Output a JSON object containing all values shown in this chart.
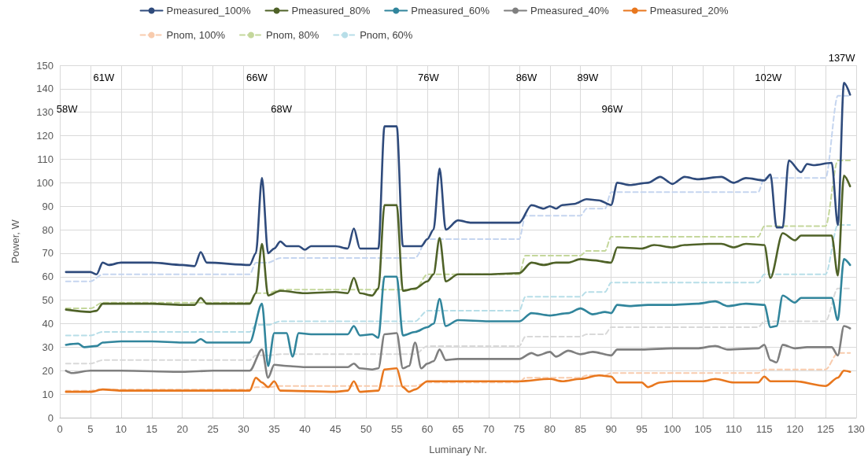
{
  "chart_data": {
    "type": "line",
    "xlabel": "Luminary Nr.",
    "ylabel": "Power, W",
    "xlim": [
      0,
      130
    ],
    "xticks": [
      0,
      5,
      10,
      15,
      20,
      25,
      30,
      35,
      40,
      45,
      50,
      55,
      60,
      65,
      70,
      75,
      80,
      85,
      90,
      95,
      100,
      105,
      110,
      115,
      120,
      125,
      130
    ],
    "ylim": [
      0,
      150
    ],
    "yticks": [
      0,
      10,
      20,
      30,
      40,
      50,
      60,
      70,
      80,
      90,
      100,
      110,
      120,
      130,
      140,
      150
    ],
    "grid": true,
    "legend": "top",
    "marker": "none",
    "annotations": [
      "58W",
      "61W",
      "66W",
      "68W",
      "76W",
      "86W",
      "89W",
      "96W",
      "102W",
      "137W"
    ],
    "series": [
      {
        "name": "Pmeasured_100%",
        "color": "#2f4b7c",
        "line_style": "solid",
        "x": [
          1,
          5,
          6,
          7,
          8,
          10,
          15,
          20,
          22,
          23,
          24,
          31,
          32,
          33,
          34,
          35,
          36,
          37,
          39,
          40,
          41,
          45,
          47,
          48,
          49,
          50,
          52,
          53,
          55,
          56,
          59,
          60,
          61,
          62,
          63,
          65,
          67,
          75,
          77,
          79,
          80,
          81,
          82,
          84,
          86,
          88,
          90,
          91,
          93,
          96,
          98,
          100,
          102,
          104,
          108,
          110,
          112,
          115,
          116,
          117,
          118,
          119,
          121,
          122,
          123,
          126,
          127,
          128,
          129
        ],
        "values": [
          62,
          62,
          61,
          66,
          65,
          66,
          66,
          65,
          64.5,
          70.5,
          66,
          65,
          70,
          102,
          70,
          72,
          75,
          73,
          73,
          71.5,
          73,
          73,
          72,
          80.5,
          72,
          72,
          72,
          124,
          124,
          73,
          73,
          76,
          80,
          106,
          80,
          84,
          83,
          83,
          90.5,
          89,
          90,
          89,
          90.5,
          91,
          93,
          92.5,
          90.5,
          100,
          99,
          100,
          102.5,
          99.5,
          102.5,
          101.5,
          102.5,
          100,
          102,
          101,
          103.5,
          81,
          81,
          109.5,
          104.5,
          108,
          107.5,
          108.5,
          82,
          142.5,
          137.5
        ]
      },
      {
        "name": "Pmeasured_80%",
        "color": "#4f6228",
        "line_style": "solid",
        "x": [
          1,
          5,
          6,
          7,
          10,
          15,
          20,
          22,
          23,
          24,
          31,
          32,
          33,
          34,
          36,
          40,
          45,
          47,
          48,
          49,
          51,
          52,
          53,
          55,
          56,
          58,
          60,
          61,
          62,
          63,
          65,
          70,
          75,
          77,
          79,
          81,
          83,
          85,
          87,
          90,
          91,
          95,
          97,
          100,
          102,
          106,
          108,
          110,
          112,
          115,
          116,
          118,
          120,
          121,
          124,
          126,
          127,
          128,
          129
        ],
        "values": [
          46,
          45,
          45.5,
          48.5,
          48.5,
          48.5,
          48,
          48,
          51,
          48.5,
          48.5,
          53,
          74,
          52,
          54,
          53,
          53.5,
          53,
          59.5,
          53,
          52,
          55,
          90.5,
          90.5,
          54,
          55,
          58,
          61,
          76.5,
          58,
          61,
          61,
          61.5,
          66,
          65,
          66,
          66,
          67.5,
          67,
          66,
          72.5,
          72,
          73.5,
          72.5,
          73.5,
          74,
          74,
          72.5,
          74,
          73.5,
          59.5,
          78.5,
          75.5,
          77.5,
          77.5,
          77.5,
          60.5,
          103,
          98.5
        ]
      },
      {
        "name": "Pmeasured_60%",
        "color": "#31859c",
        "line_style": "solid",
        "x": [
          1,
          3,
          4,
          6,
          7,
          10,
          15,
          20,
          22,
          23,
          24,
          31,
          33,
          34,
          35,
          37,
          38,
          39,
          41,
          45,
          47,
          48,
          49,
          51,
          52,
          53,
          55,
          56,
          58,
          60,
          61,
          62,
          63,
          65,
          70,
          75,
          77,
          80,
          83,
          85,
          87,
          89,
          90,
          91,
          93,
          96,
          100,
          104,
          107,
          109,
          112,
          115,
          116,
          117,
          118,
          120,
          121,
          124,
          126,
          127,
          128,
          129
        ],
        "values": [
          31,
          31.5,
          30,
          30.5,
          32,
          32.5,
          32.5,
          32,
          32,
          33.5,
          32,
          32,
          48.5,
          22,
          36,
          36,
          26,
          36,
          35.5,
          35.5,
          35.5,
          39,
          35,
          35.5,
          34,
          60,
          60,
          35,
          36.5,
          38.5,
          40,
          50.5,
          39,
          41.5,
          41,
          41,
          44.5,
          43.5,
          44.5,
          46.5,
          44,
          45,
          44.5,
          48,
          47.5,
          48,
          48,
          48.5,
          49.5,
          47.5,
          48.5,
          48,
          38.5,
          39,
          52,
          49,
          51,
          51,
          51,
          41.5,
          67.5,
          65
        ]
      },
      {
        "name": "Pmeasured_40%",
        "color": "#7f7f7f",
        "line_style": "solid",
        "x": [
          1,
          2,
          5,
          10,
          20,
          25,
          31,
          33,
          34,
          35,
          37,
          40,
          45,
          47,
          48,
          49,
          51,
          52,
          53,
          55,
          56,
          57,
          58,
          59,
          60,
          61,
          62,
          63,
          65,
          70,
          75,
          77,
          78,
          80,
          81,
          83,
          85,
          87,
          90,
          91,
          95,
          100,
          104,
          107,
          109,
          114,
          115,
          116,
          117,
          118,
          120,
          122,
          126,
          127,
          128,
          129
        ],
        "values": [
          20,
          19,
          20,
          20,
          19.5,
          20,
          20,
          29,
          17,
          22.5,
          22,
          21.5,
          21.5,
          21.5,
          23,
          21,
          20.5,
          21,
          35.5,
          36,
          21,
          22,
          32,
          21,
          23,
          24,
          29,
          24.5,
          25,
          25,
          25,
          27.5,
          26.5,
          28,
          26,
          28.5,
          27,
          28,
          26.5,
          29,
          29,
          29.5,
          29.5,
          30.5,
          29,
          29.5,
          31,
          24.5,
          23.5,
          31,
          29.5,
          30,
          30,
          26.5,
          39,
          38
        ]
      },
      {
        "name": "Pmeasured_20%",
        "color": "#e8771e",
        "line_style": "solid",
        "x": [
          1,
          5,
          7,
          10,
          20,
          31,
          32,
          33,
          34,
          35,
          36,
          45,
          47,
          48,
          49,
          52,
          53,
          55,
          56,
          57,
          58,
          60,
          62,
          65,
          70,
          75,
          80,
          82,
          85,
          88,
          90,
          91,
          95,
          96,
          98,
          100,
          105,
          107,
          110,
          114,
          115,
          116,
          120,
          125,
          127,
          128,
          129
        ],
        "values": [
          11,
          11,
          12,
          11.5,
          11.5,
          11.5,
          17,
          15,
          13,
          15.5,
          11.5,
          11,
          11.5,
          15.5,
          11,
          11.5,
          20.5,
          21,
          13,
          11,
          12,
          15.5,
          15.5,
          15.5,
          15.5,
          15.5,
          16.5,
          15.5,
          16.5,
          18,
          17.5,
          15,
          15,
          13,
          15,
          15.5,
          15.5,
          16.5,
          15,
          15,
          17.5,
          15.5,
          15.5,
          13.5,
          17,
          20,
          19.5
        ]
      },
      {
        "name": "Pnom, 100%",
        "color": "#f8cbad",
        "line_style": "dashed",
        "x": [
          1,
          5,
          7,
          31,
          32,
          34,
          36,
          58,
          60,
          75,
          76,
          85,
          86,
          89,
          90,
          114,
          115,
          125,
          127,
          129
        ],
        "values": [
          11.5,
          11.5,
          12,
          12,
          13,
          13,
          13.5,
          13.5,
          15,
          15,
          17,
          17,
          18,
          18,
          19,
          19,
          20.5,
          20.5,
          27.5,
          27.5
        ]
      },
      {
        "name": "Pnom, 80%",
        "color": "#c4d79b",
        "line_style": "dashed",
        "x": [
          1,
          5,
          7,
          31,
          32,
          34,
          36,
          58,
          60,
          75,
          76,
          85,
          86,
          89,
          90,
          114,
          115,
          125,
          127,
          129
        ],
        "values": [
          46.5,
          46.5,
          49,
          49,
          53,
          53,
          54.5,
          54.5,
          61,
          61,
          69,
          69,
          71,
          71,
          77,
          77,
          81.5,
          81.5,
          109.5,
          109.5
        ]
      },
      {
        "name": "Pnom, 60%",
        "color": "#b7dee8",
        "line_style": "dashed",
        "x": [
          1,
          5,
          7,
          31,
          32,
          34,
          36,
          58,
          60,
          75,
          76,
          85,
          86,
          89,
          90,
          114,
          115,
          125,
          127,
          129
        ],
        "values": [
          35,
          35,
          36.5,
          36.5,
          39.5,
          39.5,
          41,
          41,
          45.5,
          45.5,
          51.5,
          51.5,
          53.5,
          53.5,
          57.5,
          57.5,
          61,
          61,
          82,
          82
        ]
      },
      {
        "color": "#c5d5ef",
        "line_style": "dashed",
        "x": [
          1,
          5,
          7,
          31,
          32,
          34,
          36,
          58,
          60,
          75,
          76,
          85,
          86,
          89,
          90,
          114,
          115,
          125,
          127,
          129
        ],
        "values": [
          58,
          58,
          61,
          61,
          66,
          66,
          68,
          68,
          76,
          76,
          86,
          86,
          89,
          89,
          96,
          96,
          102,
          102,
          137,
          137
        ]
      },
      {
        "color": "#d9d9d9",
        "line_style": "dashed",
        "x": [
          1,
          5,
          7,
          31,
          32,
          34,
          36,
          58,
          60,
          75,
          76,
          85,
          86,
          89,
          90,
          114,
          115,
          125,
          127,
          129
        ],
        "values": [
          23,
          23,
          24.5,
          24.5,
          26.5,
          26.5,
          27,
          27,
          30.5,
          30.5,
          34.5,
          34.5,
          35.5,
          35.5,
          38.5,
          38.5,
          41,
          41,
          55,
          55
        ]
      }
    ]
  }
}
